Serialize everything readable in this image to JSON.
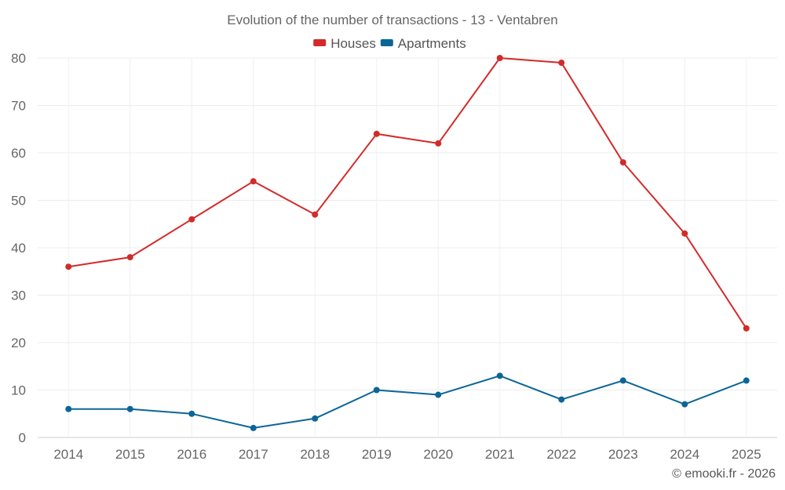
{
  "chart_data": {
    "type": "line",
    "title": "Evolution of the number of transactions - 13 - Ventabren",
    "categories": [
      "2014",
      "2015",
      "2016",
      "2017",
      "2018",
      "2019",
      "2020",
      "2021",
      "2022",
      "2023",
      "2024",
      "2025"
    ],
    "series": [
      {
        "name": "Houses",
        "color": "#d32a2a",
        "values": [
          36,
          38,
          46,
          54,
          47,
          64,
          62,
          80,
          79,
          58,
          43,
          23
        ]
      },
      {
        "name": "Apartments",
        "color": "#0b6698",
        "values": [
          6,
          6,
          5,
          2,
          4,
          10,
          9,
          13,
          8,
          12,
          7,
          12
        ]
      }
    ],
    "ylim": [
      0,
      80
    ],
    "yticks": [
      0,
      10,
      20,
      30,
      40,
      50,
      60,
      70,
      80
    ],
    "xlabel": "",
    "ylabel": "",
    "grid": true,
    "legend_position": "top-center"
  },
  "credit": "© emooki.fr - 2026"
}
